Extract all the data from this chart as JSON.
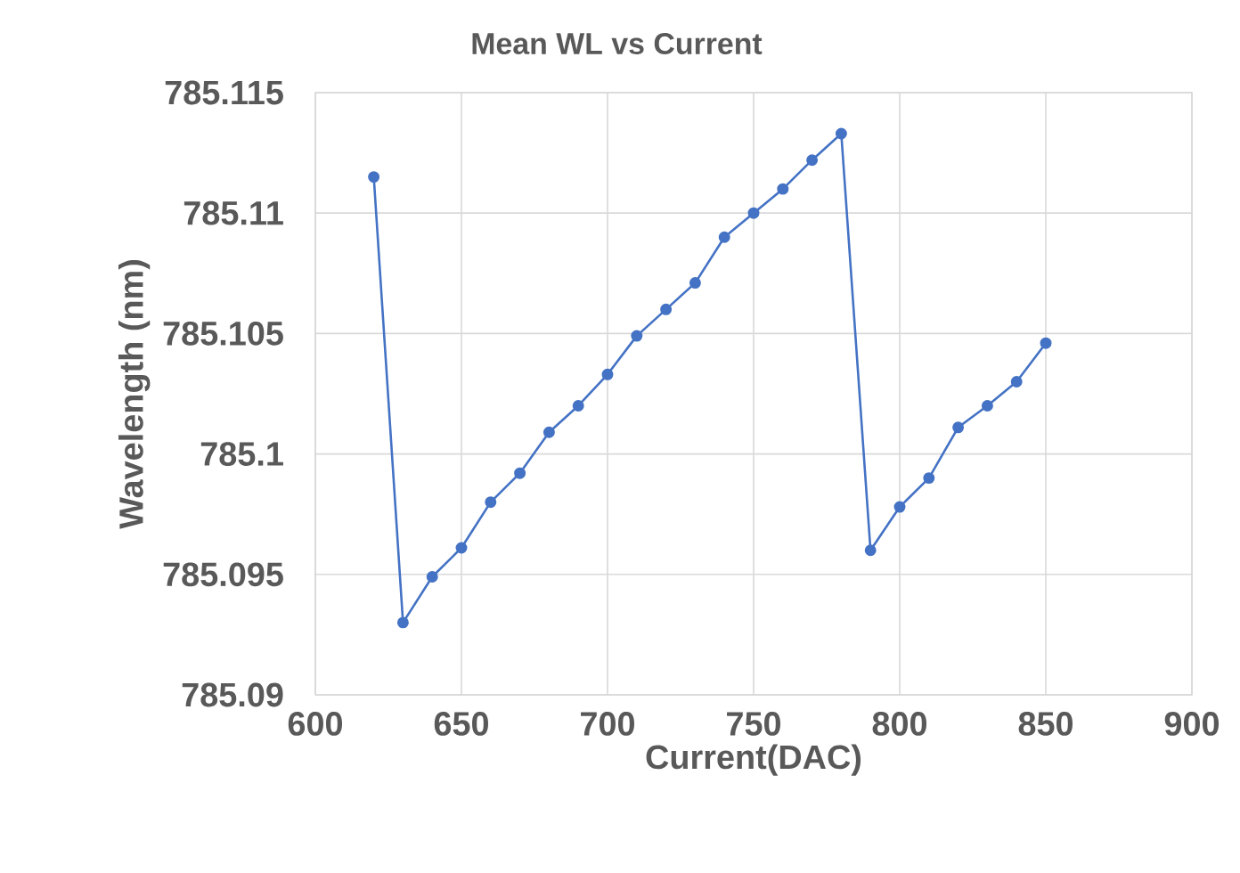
{
  "chart_data": {
    "type": "line",
    "title": "Mean WL vs Current",
    "xlabel": "Current(DAC)",
    "ylabel": "Wavelength (nm)",
    "x": [
      620,
      630,
      640,
      650,
      660,
      670,
      680,
      690,
      700,
      710,
      720,
      730,
      740,
      750,
      760,
      770,
      780,
      790,
      800,
      810,
      820,
      830,
      840,
      850
    ],
    "series": [
      {
        "color": "#4472c4",
        "values": [
          785.1115,
          785.093,
          785.0949,
          785.0961,
          785.098,
          785.0992,
          785.1009,
          785.102,
          785.1033,
          785.1049,
          785.106,
          785.1071,
          785.109,
          785.11,
          785.111,
          785.1122,
          785.1133,
          785.096,
          785.0978,
          785.099,
          785.1011,
          785.102,
          785.103,
          785.1046
        ]
      }
    ],
    "xlim": [
      600,
      900
    ],
    "xticks": [
      600,
      650,
      700,
      750,
      800,
      850,
      900
    ],
    "ylim": [
      785.09,
      785.115
    ],
    "yticks": [
      785.09,
      785.095,
      {
        "value": 785.1,
        "label": "785.1"
      },
      785.105,
      {
        "value": 785.11,
        "label": "785.11"
      },
      785.115
    ],
    "grid": true,
    "marker": "circle",
    "line_style": "solid"
  }
}
